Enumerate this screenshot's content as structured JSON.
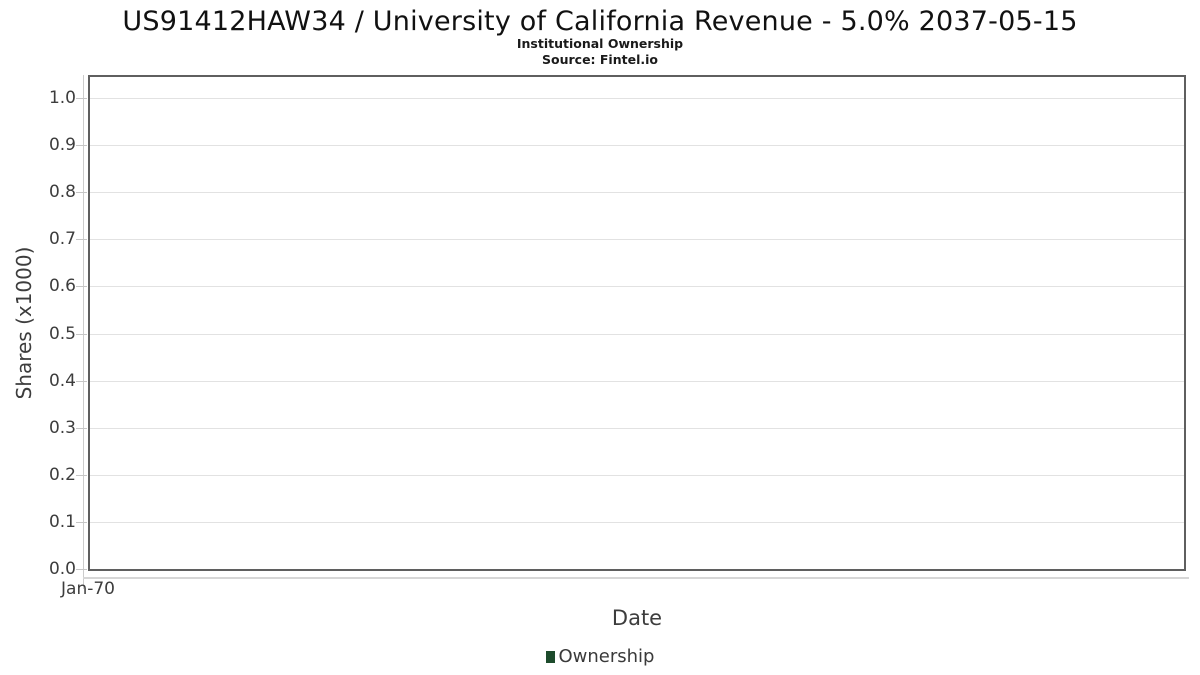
{
  "header": {
    "title": "US91412HAW34 / University of California Revenue - 5.0% 2037-05-15",
    "subtitle": "Institutional Ownership",
    "source": "Source: Fintel.io"
  },
  "chart": {
    "xlabel": "Date",
    "ylabel": "Shares (x1000)",
    "x_ticks": [
      "Jan-70"
    ],
    "y_ticks": [
      "1.0",
      "0.9",
      "0.8",
      "0.7",
      "0.6",
      "0.5",
      "0.4",
      "0.3",
      "0.2",
      "0.1",
      "0.0"
    ],
    "legend": [
      {
        "label": "Ownership",
        "marker": "square",
        "color": "#1d4b2c"
      }
    ]
  },
  "chart_data": {
    "type": "line",
    "title": "US91412HAW34 / University of California Revenue - 5.0% 2037-05-15",
    "subtitle": "Institutional Ownership",
    "source": "Source: Fintel.io",
    "xlabel": "Date",
    "ylabel": "Shares (x1000)",
    "x": [
      "Jan-70"
    ],
    "series": [
      {
        "name": "Ownership",
        "color": "#1d4b2c",
        "values": []
      }
    ],
    "ylim": [
      0.0,
      1.05
    ],
    "y_tick_step": 0.1,
    "grid": "horizontal",
    "legend_position": "bottom"
  },
  "colors": {
    "legend_marker": "#1d4b2c",
    "plot_border": "#5f5f5f",
    "gridline": "#e2e2e2",
    "axis_tick": "#c6c6c6",
    "title_text": "#111111",
    "axis_text": "#3d3d3d"
  }
}
